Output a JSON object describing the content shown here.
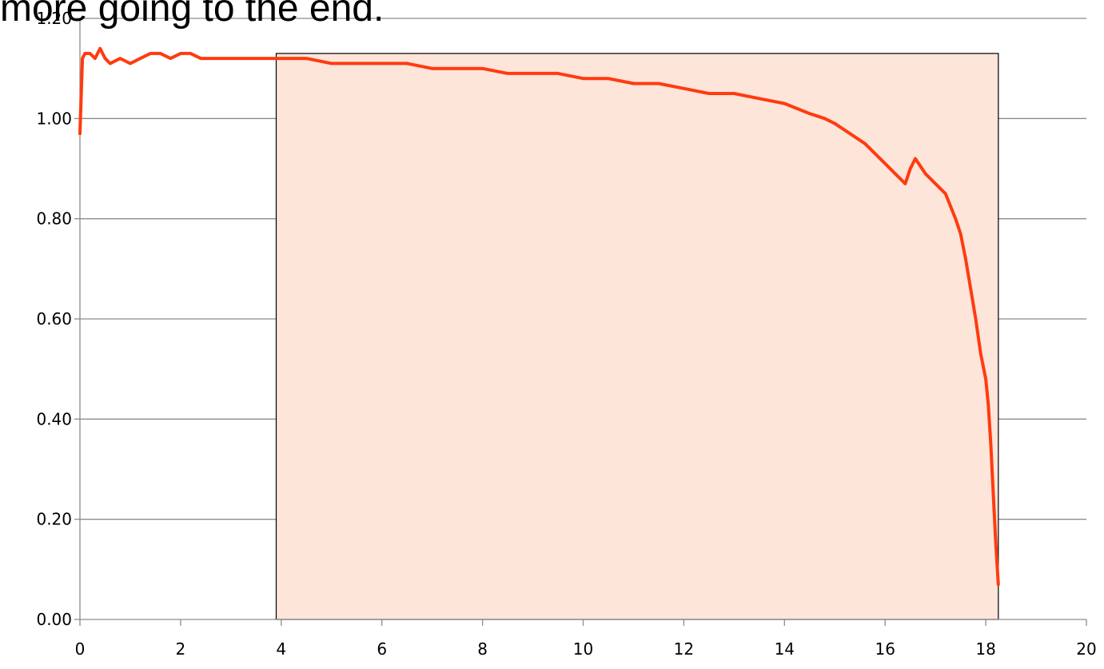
{
  "title_fragment": "more going to the end.",
  "colors": {
    "series": "#ff3b0f",
    "highlight_fill": "#fde5da",
    "highlight_stroke": "#000000",
    "grid": "#8c8c8c"
  },
  "chart_data": {
    "type": "line",
    "title": "",
    "xlabel": "",
    "ylabel": "",
    "xlim": [
      0,
      20
    ],
    "ylim": [
      0,
      1.2
    ],
    "x_ticks": [
      "0",
      "2",
      "4",
      "6",
      "8",
      "10",
      "12",
      "14",
      "16",
      "18",
      "20"
    ],
    "y_ticks": [
      "0.00",
      "0.20",
      "0.40",
      "0.60",
      "0.80",
      "1.00",
      "1.20"
    ],
    "grid": "horizontal",
    "highlight_region": {
      "x": [
        3.9,
        18.25
      ],
      "y": [
        0,
        1.13
      ]
    },
    "series": [
      {
        "x": [
          0.0,
          0.05,
          0.1,
          0.2,
          0.3,
          0.4,
          0.5,
          0.6,
          0.8,
          1.0,
          1.2,
          1.4,
          1.6,
          1.8,
          2.0,
          2.2,
          2.4,
          2.6,
          2.8,
          3.0,
          3.2,
          3.4,
          3.6,
          3.8,
          4.0,
          4.5,
          5.0,
          5.5,
          6.0,
          6.5,
          7.0,
          7.5,
          8.0,
          8.5,
          9.0,
          9.5,
          10.0,
          10.5,
          11.0,
          11.5,
          12.0,
          12.5,
          13.0,
          13.5,
          14.0,
          14.5,
          14.8,
          15.0,
          15.3,
          15.6,
          15.8,
          16.0,
          16.2,
          16.4,
          16.5,
          16.6,
          16.8,
          17.0,
          17.2,
          17.4,
          17.5,
          17.6,
          17.7,
          17.8,
          17.9,
          18.0,
          18.05,
          18.1,
          18.15,
          18.2,
          18.25
        ],
        "y": [
          0.97,
          1.12,
          1.13,
          1.13,
          1.12,
          1.14,
          1.12,
          1.11,
          1.12,
          1.11,
          1.12,
          1.13,
          1.13,
          1.12,
          1.13,
          1.13,
          1.12,
          1.12,
          1.12,
          1.12,
          1.12,
          1.12,
          1.12,
          1.12,
          1.12,
          1.12,
          1.11,
          1.11,
          1.11,
          1.11,
          1.1,
          1.1,
          1.1,
          1.09,
          1.09,
          1.09,
          1.08,
          1.08,
          1.07,
          1.07,
          1.06,
          1.05,
          1.05,
          1.04,
          1.03,
          1.01,
          1.0,
          0.99,
          0.97,
          0.95,
          0.93,
          0.91,
          0.89,
          0.87,
          0.9,
          0.92,
          0.89,
          0.87,
          0.85,
          0.8,
          0.77,
          0.72,
          0.66,
          0.6,
          0.53,
          0.48,
          0.43,
          0.35,
          0.25,
          0.15,
          0.07
        ]
      }
    ]
  }
}
